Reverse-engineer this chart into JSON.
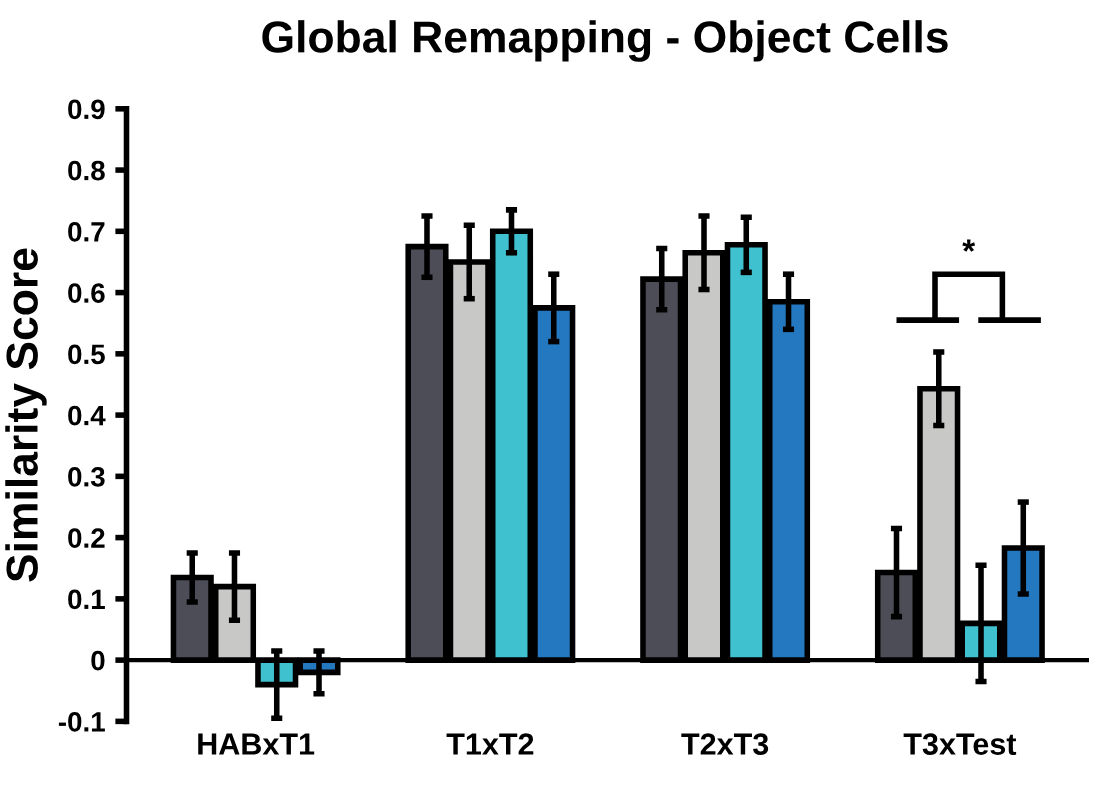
{
  "chart_data": {
    "type": "bar",
    "title": "Global Remapping - Object Cells",
    "ylabel": "Similarity Score",
    "categories": [
      "HABxT1",
      "T1xT2",
      "T2xT3",
      "T3xTest"
    ],
    "series": [
      {
        "color": "#4d4d57",
        "values": [
          0.135,
          0.675,
          0.622,
          0.143
        ],
        "errors": [
          0.04,
          0.05,
          0.05,
          0.072
        ]
      },
      {
        "color": "#c8c8c6",
        "values": [
          0.12,
          0.65,
          0.665,
          0.443
        ],
        "errors": [
          0.055,
          0.06,
          0.06,
          0.06
        ]
      },
      {
        "color": "#3fc1cf",
        "values": [
          -0.04,
          0.7,
          0.678,
          0.06
        ],
        "errors": [
          0.055,
          0.035,
          0.045,
          0.095
        ]
      },
      {
        "color": "#2478c0",
        "values": [
          -0.02,
          0.575,
          0.585,
          0.183
        ],
        "errors": [
          0.035,
          0.055,
          0.045,
          0.075
        ]
      }
    ],
    "ylim": [
      -0.1,
      0.9
    ],
    "yticks": [
      -0.1,
      0,
      0.1,
      0.2,
      0.3,
      0.4,
      0.5,
      0.6,
      0.7,
      0.8,
      0.9
    ],
    "annotations": [
      "*"
    ],
    "grid": false,
    "legend": false
  }
}
